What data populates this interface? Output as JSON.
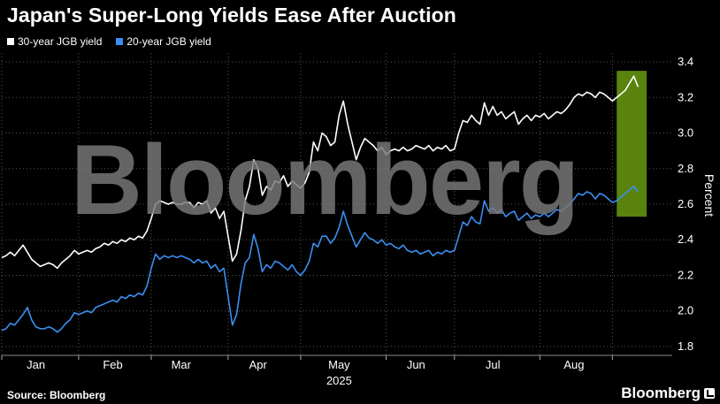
{
  "title": "Japan's Super-Long Yields Ease After Auction",
  "legend": [
    {
      "label": "30-year JGB yield",
      "color": "#ffffff"
    },
    {
      "label": "20-year JGB yield",
      "color": "#3a8ff0"
    }
  ],
  "watermark": "Bloomberg",
  "source": "Source: Bloomberg",
  "brand": "Bloomberg",
  "chart_data": {
    "type": "line",
    "ylabel": "Percent",
    "xlabel": "2025",
    "ylim": [
      1.75,
      3.45
    ],
    "yticks": [
      1.8,
      2.0,
      2.2,
      2.4,
      2.6,
      2.8,
      3.0,
      3.2,
      3.4
    ],
    "ytick_labels": [
      "1.8",
      "2.0",
      "2.2",
      "2.4",
      "2.6",
      "2.8",
      "3.0",
      "3.2",
      "3.4"
    ],
    "x_range": [
      0,
      157
    ],
    "x_ticks": [
      {
        "x": 0,
        "label": ""
      },
      {
        "x": 8,
        "label": "Jan"
      },
      {
        "x": 18,
        "label": ""
      },
      {
        "x": 26,
        "label": "Feb"
      },
      {
        "x": 35,
        "label": ""
      },
      {
        "x": 42,
        "label": "Mar"
      },
      {
        "x": 53,
        "label": ""
      },
      {
        "x": 60,
        "label": "Apr"
      },
      {
        "x": 70,
        "label": ""
      },
      {
        "x": 79,
        "label": "May"
      },
      {
        "x": 90,
        "label": ""
      },
      {
        "x": 97,
        "label": "Jun"
      },
      {
        "x": 106,
        "label": ""
      },
      {
        "x": 115,
        "label": "Jul"
      },
      {
        "x": 126,
        "label": ""
      },
      {
        "x": 134,
        "label": "Aug"
      },
      {
        "x": 143,
        "label": ""
      }
    ],
    "highlight": {
      "x0": 144,
      "x1": 151,
      "y0": 2.53,
      "y1": 3.35,
      "color": "#6a9a10"
    },
    "series": [
      {
        "name": "30-year JGB yield",
        "color": "#ffffff",
        "values": [
          [
            0,
            2.3
          ],
          [
            1,
            2.31
          ],
          [
            2,
            2.33
          ],
          [
            3,
            2.31
          ],
          [
            4,
            2.34
          ],
          [
            5,
            2.37
          ],
          [
            6,
            2.33
          ],
          [
            7,
            2.29
          ],
          [
            8,
            2.27
          ],
          [
            9,
            2.25
          ],
          [
            10,
            2.26
          ],
          [
            11,
            2.27
          ],
          [
            12,
            2.26
          ],
          [
            13,
            2.24
          ],
          [
            14,
            2.27
          ],
          [
            15,
            2.29
          ],
          [
            16,
            2.31
          ],
          [
            17,
            2.34
          ],
          [
            18,
            2.32
          ],
          [
            19,
            2.33
          ],
          [
            20,
            2.34
          ],
          [
            21,
            2.33
          ],
          [
            22,
            2.35
          ],
          [
            23,
            2.36
          ],
          [
            24,
            2.38
          ],
          [
            25,
            2.37
          ],
          [
            26,
            2.39
          ],
          [
            27,
            2.38
          ],
          [
            28,
            2.4
          ],
          [
            29,
            2.39
          ],
          [
            30,
            2.41
          ],
          [
            31,
            2.4
          ],
          [
            32,
            2.42
          ],
          [
            33,
            2.41
          ],
          [
            34,
            2.45
          ],
          [
            35,
            2.52
          ],
          [
            36,
            2.6
          ],
          [
            37,
            2.62
          ],
          [
            38,
            2.61
          ],
          [
            39,
            2.6
          ],
          [
            40,
            2.61
          ],
          [
            41,
            2.6
          ],
          [
            42,
            2.6
          ],
          [
            43,
            2.61
          ],
          [
            44,
            2.61
          ],
          [
            45,
            2.58
          ],
          [
            46,
            2.61
          ],
          [
            47,
            2.6
          ],
          [
            48,
            2.62
          ],
          [
            49,
            2.55
          ],
          [
            50,
            2.58
          ],
          [
            51,
            2.52
          ],
          [
            52,
            2.56
          ],
          [
            53,
            2.42
          ],
          [
            54,
            2.28
          ],
          [
            55,
            2.32
          ],
          [
            56,
            2.45
          ],
          [
            57,
            2.62
          ],
          [
            58,
            2.7
          ],
          [
            59,
            2.85
          ],
          [
            60,
            2.8
          ],
          [
            61,
            2.65
          ],
          [
            62,
            2.7
          ],
          [
            63,
            2.68
          ],
          [
            64,
            2.73
          ],
          [
            65,
            2.72
          ],
          [
            66,
            2.76
          ],
          [
            67,
            2.7
          ],
          [
            68,
            2.73
          ],
          [
            69,
            2.71
          ],
          [
            70,
            2.69
          ],
          [
            71,
            2.72
          ],
          [
            72,
            2.78
          ],
          [
            73,
            2.95
          ],
          [
            74,
            2.9
          ],
          [
            75,
            3.0
          ],
          [
            76,
            2.98
          ],
          [
            77,
            2.93
          ],
          [
            78,
            2.95
          ],
          [
            79,
            3.1
          ],
          [
            80,
            3.18
          ],
          [
            81,
            3.05
          ],
          [
            82,
            2.95
          ],
          [
            83,
            2.85
          ],
          [
            84,
            2.92
          ],
          [
            85,
            2.97
          ],
          [
            86,
            2.95
          ],
          [
            87,
            2.93
          ],
          [
            88,
            2.9
          ],
          [
            89,
            2.92
          ],
          [
            90,
            2.88
          ],
          [
            91,
            2.9
          ],
          [
            92,
            2.91
          ],
          [
            93,
            2.9
          ],
          [
            94,
            2.92
          ],
          [
            95,
            2.9
          ],
          [
            96,
            2.91
          ],
          [
            97,
            2.93
          ],
          [
            98,
            2.92
          ],
          [
            99,
            2.91
          ],
          [
            100,
            2.93
          ],
          [
            101,
            2.9
          ],
          [
            102,
            2.92
          ],
          [
            103,
            2.91
          ],
          [
            104,
            2.93
          ],
          [
            105,
            2.9
          ],
          [
            106,
            2.91
          ],
          [
            107,
            3.0
          ],
          [
            108,
            3.07
          ],
          [
            109,
            3.06
          ],
          [
            110,
            3.1
          ],
          [
            111,
            3.07
          ],
          [
            112,
            3.05
          ],
          [
            113,
            3.17
          ],
          [
            114,
            3.1
          ],
          [
            115,
            3.15
          ],
          [
            116,
            3.1
          ],
          [
            117,
            3.12
          ],
          [
            118,
            3.08
          ],
          [
            119,
            3.1
          ],
          [
            120,
            3.12
          ],
          [
            121,
            3.05
          ],
          [
            122,
            3.08
          ],
          [
            123,
            3.1
          ],
          [
            124,
            3.07
          ],
          [
            125,
            3.1
          ],
          [
            126,
            3.09
          ],
          [
            127,
            3.11
          ],
          [
            128,
            3.08
          ],
          [
            129,
            3.1
          ],
          [
            130,
            3.12
          ],
          [
            131,
            3.11
          ],
          [
            132,
            3.13
          ],
          [
            133,
            3.16
          ],
          [
            134,
            3.2
          ],
          [
            135,
            3.22
          ],
          [
            136,
            3.21
          ],
          [
            137,
            3.23
          ],
          [
            138,
            3.22
          ],
          [
            139,
            3.2
          ],
          [
            140,
            3.23
          ],
          [
            141,
            3.22
          ],
          [
            142,
            3.2
          ],
          [
            143,
            3.18
          ],
          [
            144,
            3.2
          ],
          [
            145,
            3.22
          ],
          [
            146,
            3.24
          ],
          [
            147,
            3.28
          ],
          [
            148,
            3.32
          ],
          [
            149,
            3.26
          ]
        ]
      },
      {
        "name": "20-year JGB yield",
        "color": "#3a8ff0",
        "values": [
          [
            0,
            1.89
          ],
          [
            1,
            1.9
          ],
          [
            2,
            1.93
          ],
          [
            3,
            1.92
          ],
          [
            4,
            1.95
          ],
          [
            5,
            1.98
          ],
          [
            6,
            2.02
          ],
          [
            7,
            1.95
          ],
          [
            8,
            1.91
          ],
          [
            9,
            1.9
          ],
          [
            10,
            1.9
          ],
          [
            11,
            1.91
          ],
          [
            12,
            1.9
          ],
          [
            13,
            1.88
          ],
          [
            14,
            1.9
          ],
          [
            15,
            1.93
          ],
          [
            16,
            1.95
          ],
          [
            17,
            1.99
          ],
          [
            18,
            1.98
          ],
          [
            19,
            1.99
          ],
          [
            20,
            2.0
          ],
          [
            21,
            1.99
          ],
          [
            22,
            2.02
          ],
          [
            23,
            2.03
          ],
          [
            24,
            2.04
          ],
          [
            25,
            2.05
          ],
          [
            26,
            2.06
          ],
          [
            27,
            2.05
          ],
          [
            28,
            2.08
          ],
          [
            29,
            2.07
          ],
          [
            30,
            2.09
          ],
          [
            31,
            2.08
          ],
          [
            32,
            2.1
          ],
          [
            33,
            2.09
          ],
          [
            34,
            2.14
          ],
          [
            35,
            2.24
          ],
          [
            36,
            2.32
          ],
          [
            37,
            2.29
          ],
          [
            38,
            2.31
          ],
          [
            39,
            2.3
          ],
          [
            40,
            2.31
          ],
          [
            41,
            2.3
          ],
          [
            42,
            2.31
          ],
          [
            43,
            2.3
          ],
          [
            44,
            2.29
          ],
          [
            45,
            2.27
          ],
          [
            46,
            2.29
          ],
          [
            47,
            2.27
          ],
          [
            48,
            2.28
          ],
          [
            49,
            2.24
          ],
          [
            50,
            2.26
          ],
          [
            51,
            2.22
          ],
          [
            52,
            2.24
          ],
          [
            53,
            2.08
          ],
          [
            54,
            1.92
          ],
          [
            55,
            1.98
          ],
          [
            56,
            2.15
          ],
          [
            57,
            2.27
          ],
          [
            58,
            2.3
          ],
          [
            59,
            2.43
          ],
          [
            60,
            2.35
          ],
          [
            61,
            2.22
          ],
          [
            62,
            2.26
          ],
          [
            63,
            2.24
          ],
          [
            64,
            2.28
          ],
          [
            65,
            2.27
          ],
          [
            66,
            2.25
          ],
          [
            67,
            2.23
          ],
          [
            68,
            2.26
          ],
          [
            69,
            2.22
          ],
          [
            70,
            2.2
          ],
          [
            71,
            2.23
          ],
          [
            72,
            2.28
          ],
          [
            73,
            2.38
          ],
          [
            74,
            2.36
          ],
          [
            75,
            2.42
          ],
          [
            76,
            2.42
          ],
          [
            77,
            2.38
          ],
          [
            78,
            2.41
          ],
          [
            79,
            2.47
          ],
          [
            80,
            2.56
          ],
          [
            81,
            2.48
          ],
          [
            82,
            2.42
          ],
          [
            83,
            2.36
          ],
          [
            84,
            2.4
          ],
          [
            85,
            2.44
          ],
          [
            86,
            2.41
          ],
          [
            87,
            2.4
          ],
          [
            88,
            2.38
          ],
          [
            89,
            2.4
          ],
          [
            90,
            2.37
          ],
          [
            91,
            2.38
          ],
          [
            92,
            2.36
          ],
          [
            93,
            2.35
          ],
          [
            94,
            2.37
          ],
          [
            95,
            2.34
          ],
          [
            96,
            2.33
          ],
          [
            97,
            2.34
          ],
          [
            98,
            2.32
          ],
          [
            99,
            2.33
          ],
          [
            100,
            2.34
          ],
          [
            101,
            2.31
          ],
          [
            102,
            2.33
          ],
          [
            103,
            2.32
          ],
          [
            104,
            2.34
          ],
          [
            105,
            2.33
          ],
          [
            106,
            2.34
          ],
          [
            107,
            2.42
          ],
          [
            108,
            2.5
          ],
          [
            109,
            2.48
          ],
          [
            110,
            2.53
          ],
          [
            111,
            2.5
          ],
          [
            112,
            2.49
          ],
          [
            113,
            2.62
          ],
          [
            114,
            2.56
          ],
          [
            115,
            2.58
          ],
          [
            116,
            2.55
          ],
          [
            117,
            2.57
          ],
          [
            118,
            2.53
          ],
          [
            119,
            2.55
          ],
          [
            120,
            2.56
          ],
          [
            121,
            2.51
          ],
          [
            122,
            2.53
          ],
          [
            123,
            2.55
          ],
          [
            124,
            2.52
          ],
          [
            125,
            2.54
          ],
          [
            126,
            2.53
          ],
          [
            127,
            2.55
          ],
          [
            128,
            2.53
          ],
          [
            129,
            2.55
          ],
          [
            130,
            2.57
          ],
          [
            131,
            2.56
          ],
          [
            132,
            2.58
          ],
          [
            133,
            2.6
          ],
          [
            134,
            2.63
          ],
          [
            135,
            2.66
          ],
          [
            136,
            2.65
          ],
          [
            137,
            2.67
          ],
          [
            138,
            2.66
          ],
          [
            139,
            2.63
          ],
          [
            140,
            2.66
          ],
          [
            141,
            2.65
          ],
          [
            142,
            2.63
          ],
          [
            143,
            2.61
          ],
          [
            144,
            2.62
          ],
          [
            145,
            2.64
          ],
          [
            146,
            2.66
          ],
          [
            147,
            2.68
          ],
          [
            148,
            2.7
          ],
          [
            149,
            2.67
          ]
        ]
      }
    ]
  }
}
